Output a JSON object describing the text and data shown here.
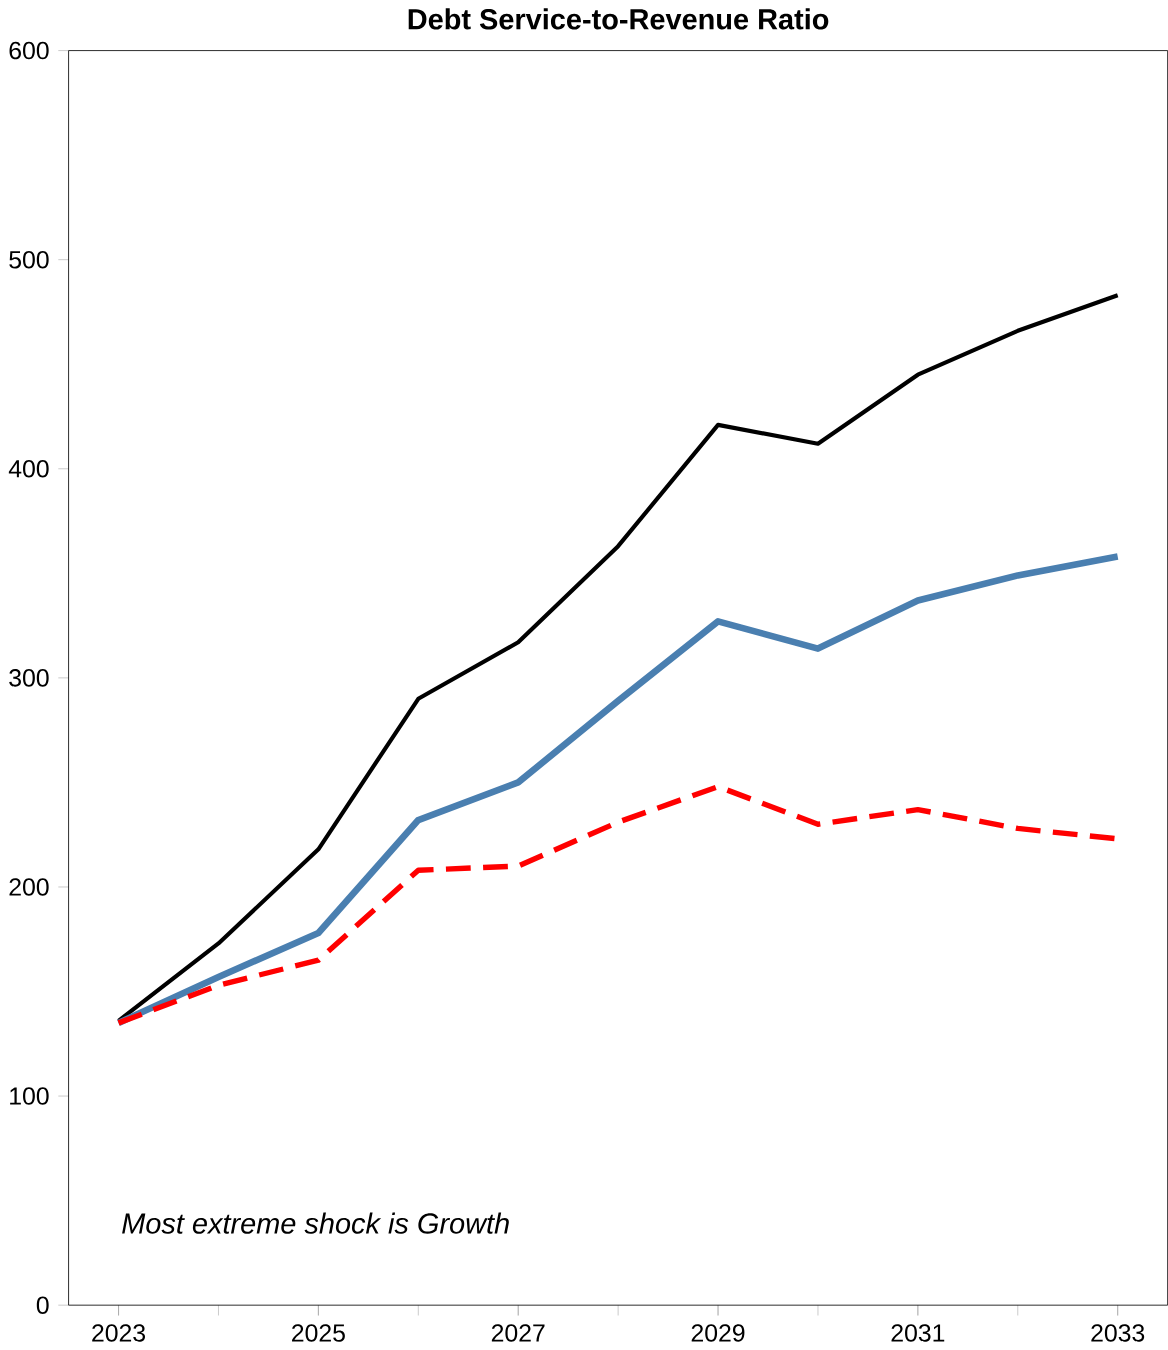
{
  "chart_data": {
    "type": "line",
    "title": "Debt Service-to-Revenue Ratio",
    "x": [
      2023,
      2024,
      2025,
      2026,
      2027,
      2028,
      2029,
      2030,
      2031,
      2032,
      2033
    ],
    "series": [
      {
        "color": "#000000",
        "line_style": "solid",
        "values": [
          136,
          173,
          218,
          290,
          317,
          363,
          421,
          412,
          445,
          466,
          483
        ]
      },
      {
        "color": "#4a7fb0",
        "line_style": "solid",
        "values": [
          135,
          157,
          178,
          232,
          250,
          289,
          327,
          314,
          337,
          349,
          358
        ]
      },
      {
        "color": "#ff0000",
        "line_style": "dashed",
        "values": [
          135,
          153,
          165,
          208,
          210,
          231,
          248,
          230,
          237,
          228,
          223
        ]
      }
    ],
    "xlim": [
      2022.5,
      2033.5
    ],
    "xticks": [
      2023,
      2025,
      2027,
      2029,
      2031,
      2033
    ],
    "ylim": [
      0,
      600
    ],
    "yticks": [
      0,
      100,
      200,
      300,
      400,
      500,
      600
    ],
    "marker": "none",
    "annotations": [
      {
        "text": "*Most extreme shock is Growth*"
      }
    ]
  }
}
